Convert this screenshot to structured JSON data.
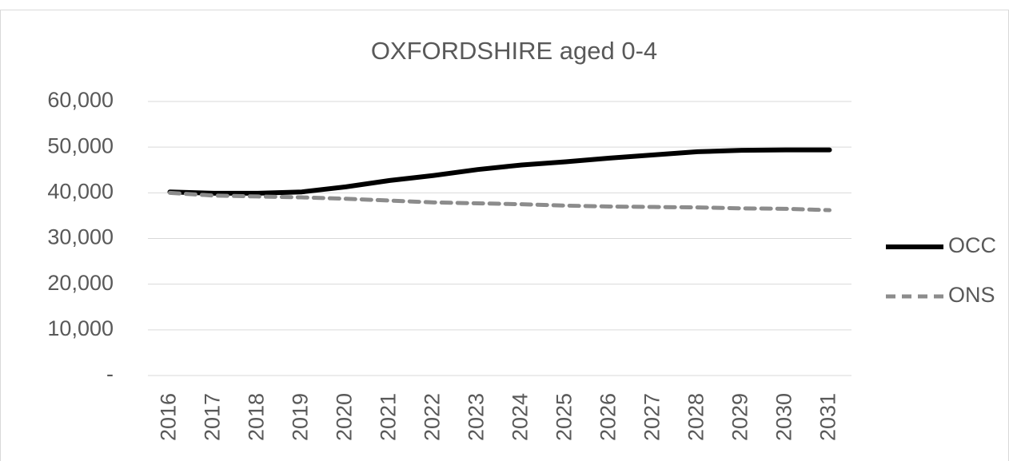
{
  "chart_data": {
    "type": "line",
    "title": "OXFORDSHIRE aged 0-4",
    "categories": [
      "2016",
      "2017",
      "2018",
      "2019",
      "2020",
      "2021",
      "2022",
      "2023",
      "2024",
      "2025",
      "2026",
      "2027",
      "2028",
      "2029",
      "2030",
      "2031"
    ],
    "series": [
      {
        "name": "OCC",
        "color": "#000000",
        "dash": false,
        "values": [
          40200,
          39900,
          39900,
          40200,
          41300,
          42700,
          43800,
          45100,
          46100,
          46800,
          47600,
          48300,
          49000,
          49300,
          49400,
          49400
        ]
      },
      {
        "name": "ONS",
        "color": "#8c8c8c",
        "dash": true,
        "values": [
          40000,
          39400,
          39200,
          39000,
          38700,
          38300,
          37900,
          37700,
          37500,
          37200,
          37000,
          36900,
          36800,
          36600,
          36500,
          36200
        ]
      }
    ],
    "ylim": [
      0,
      60000
    ],
    "yticks": [
      {
        "value": 0,
        "label": "-"
      },
      {
        "value": 10000,
        "label": "10,000"
      },
      {
        "value": 20000,
        "label": "20,000"
      },
      {
        "value": 30000,
        "label": "30,000"
      },
      {
        "value": 40000,
        "label": "40,000"
      },
      {
        "value": 50000,
        "label": "50,000"
      },
      {
        "value": 60000,
        "label": "60,000"
      }
    ],
    "grid": true,
    "legend": "right"
  }
}
